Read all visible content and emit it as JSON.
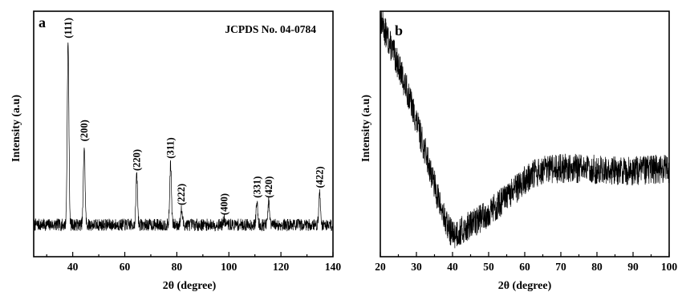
{
  "chart_data": [
    {
      "type": "line",
      "panel_label": "a",
      "annotation": "JCPDS No. 04-0784",
      "xlabel": "2θ (degree)",
      "ylabel": "Intensity (a.u)",
      "xlim": [
        25,
        140
      ],
      "ylim": [
        0,
        1
      ],
      "x_ticks": [
        40,
        60,
        80,
        100,
        120,
        140
      ],
      "y_ticks_shown": false,
      "grid": false,
      "baseline": 0.13,
      "noise": 0.025,
      "peaks": [
        {
          "x": 38.2,
          "y": 0.87,
          "label": "(111)"
        },
        {
          "x": 44.4,
          "y": 0.45,
          "label": "(200)"
        },
        {
          "x": 64.6,
          "y": 0.33,
          "label": "(220)"
        },
        {
          "x": 77.6,
          "y": 0.38,
          "label": "(311)"
        },
        {
          "x": 81.8,
          "y": 0.19,
          "label": "(222)"
        },
        {
          "x": 98.2,
          "y": 0.15,
          "label": "(400)"
        },
        {
          "x": 110.8,
          "y": 0.22,
          "label": "(331)"
        },
        {
          "x": 115.3,
          "y": 0.22,
          "label": "(420)"
        },
        {
          "x": 134.9,
          "y": 0.26,
          "label": "(422)"
        }
      ]
    },
    {
      "type": "line",
      "panel_label": "b",
      "annotation": "",
      "xlabel": "2θ (degree)",
      "ylabel": "Intensity (a.u)",
      "xlim": [
        20,
        100
      ],
      "ylim": [
        0,
        1
      ],
      "x_ticks": [
        20,
        30,
        40,
        50,
        60,
        70,
        80,
        90,
        100
      ],
      "y_ticks_shown": false,
      "grid": false,
      "noise": 0.06,
      "curve": {
        "x": [
          20,
          22,
          25,
          28,
          30,
          33,
          36,
          38,
          40,
          42,
          45,
          50,
          55,
          60,
          63,
          65,
          70,
          75,
          80,
          85,
          90,
          95,
          100
        ],
        "y": [
          0.97,
          0.89,
          0.78,
          0.65,
          0.55,
          0.4,
          0.24,
          0.14,
          0.09,
          0.1,
          0.13,
          0.18,
          0.24,
          0.31,
          0.34,
          0.35,
          0.36,
          0.36,
          0.355,
          0.35,
          0.35,
          0.355,
          0.36
        ]
      }
    }
  ]
}
